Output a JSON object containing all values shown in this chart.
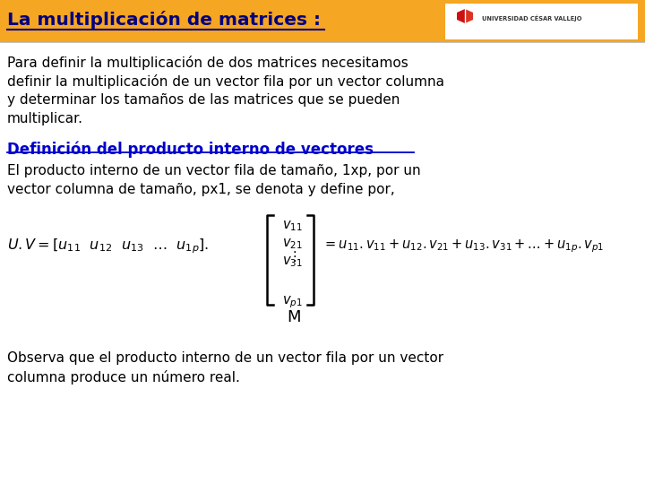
{
  "header_bg": "#F5A623",
  "header_title": "La multiplicación de matrices :",
  "header_title_color": "#000080",
  "body_bg": "#FFFFFF",
  "para1_line1": "Para definir la multiplicación de dos matrices necesitamos",
  "para1_line2": "definir la multiplicación de un vector fila por un vector columna",
  "para1_line3": "y determinar los tamaños de las matrices que se pueden",
  "para1_line4": "multiplicar.",
  "para1_color": "#000000",
  "section_title": "Definición del producto interno de vectores",
  "section_title_color": "#0000CC",
  "para2_line1": "El producto interno de un vector fila de tamaño, 1xp, por un",
  "para2_line2": "vector columna de tamaño, px1, se denota y define por,",
  "para2_color": "#000000",
  "matrix_label": "M",
  "para3_line1": "Observa que el producto interno de un vector fila por un vector",
  "para3_line2": "columna produce un número real.",
  "para3_color": "#000000"
}
